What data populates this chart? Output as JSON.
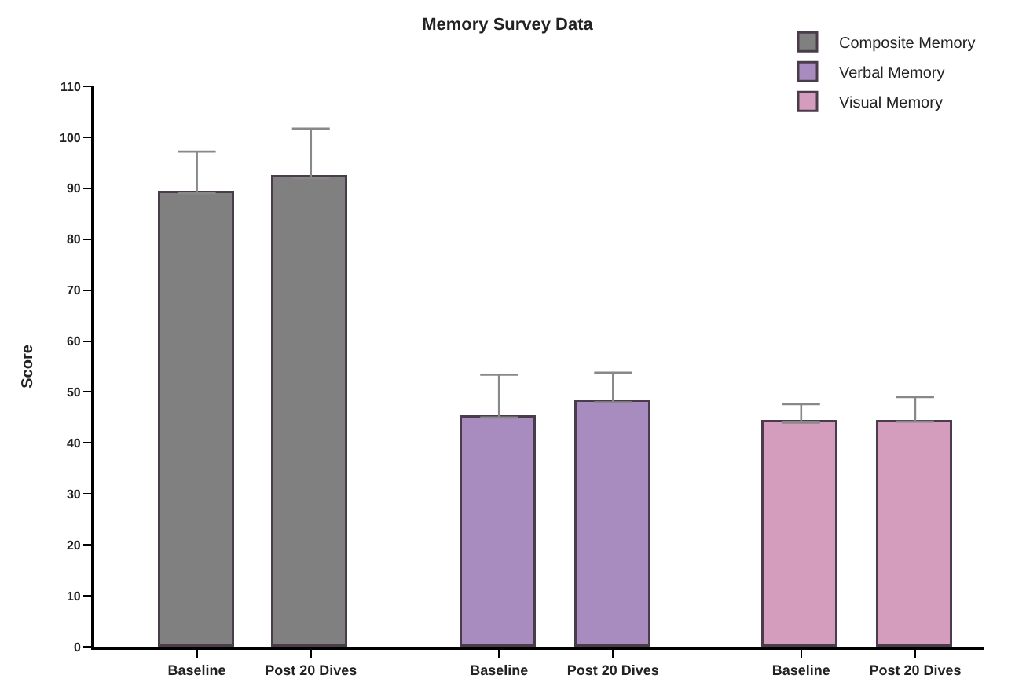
{
  "chart_data": {
    "type": "bar",
    "title": "Memory Survey Data",
    "ylabel": "Score",
    "categories": [
      "Baseline",
      "Post 20 Dives",
      "Baseline",
      "Post 20 Dives",
      "Baseline",
      "Post 20 Dives"
    ],
    "series": [
      {
        "name": "Composite Memory",
        "color": "#808080",
        "values": [
          89,
          92,
          null,
          null,
          null,
          null
        ],
        "errors": [
          [
            89,
            97.2
          ],
          [
            92,
            101.7
          ],
          null,
          null,
          null,
          null
        ]
      },
      {
        "name": "Verbal Memory",
        "color": "#a88cbf",
        "values": [
          null,
          null,
          45,
          48,
          null,
          null
        ],
        "errors": [
          null,
          null,
          [
            45,
            53.4
          ],
          [
            48,
            53.8
          ],
          null,
          null
        ]
      },
      {
        "name": "Visual Memory",
        "color": "#d49dbd",
        "values": [
          null,
          null,
          null,
          null,
          44,
          44.2
        ],
        "errors": [
          null,
          null,
          null,
          null,
          [
            44,
            47.6
          ],
          [
            44.2,
            49
          ]
        ]
      }
    ],
    "ylim": [
      0,
      110
    ],
    "yticks": [
      0,
      10,
      20,
      30,
      40,
      50,
      60,
      70,
      80,
      90,
      100,
      110
    ],
    "legend": "top right"
  }
}
